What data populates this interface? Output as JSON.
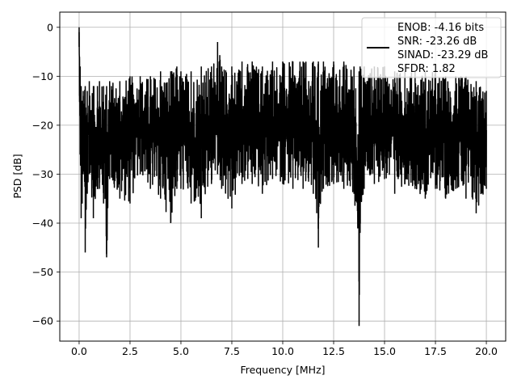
{
  "chart_data": {
    "type": "line",
    "title": "",
    "xlabel": "Frequency [MHz]",
    "ylabel": "PSD [dB]",
    "xlim": [
      -0.95,
      20.95
    ],
    "ylim": [
      -64.1,
      3.1
    ],
    "xticks": [
      0.0,
      2.5,
      5.0,
      7.5,
      10.0,
      12.5,
      15.0,
      17.5,
      20.0
    ],
    "xtick_labels": [
      "0.0",
      "2.5",
      "5.0",
      "7.5",
      "10.0",
      "12.5",
      "15.0",
      "17.5",
      "20.0"
    ],
    "yticks": [
      0,
      -10,
      -20,
      -30,
      -40,
      -50,
      -60
    ],
    "ytick_labels": [
      "0",
      "−10",
      "−20",
      "−30",
      "−40",
      "−50",
      "−60"
    ],
    "grid": true,
    "legend_position": "top-right",
    "legend_lines": [
      "ENOB: -4.16 bits",
      "SNR: -23.26 dB",
      "SINAD: -23.29 dB",
      "SFDR: 1.82"
    ],
    "line_color": "#000000",
    "series": [
      {
        "x": [
          0.0,
          0.02,
          0.05,
          0.1,
          0.15,
          0.2,
          0.3,
          0.4,
          0.5,
          0.7,
          0.9,
          1.0,
          1.2,
          1.35,
          1.5,
          2.0,
          2.5,
          3.0,
          3.5,
          4.0,
          4.5,
          4.8,
          5.0,
          5.5,
          6.0,
          6.5,
          6.8,
          7.0,
          7.5,
          8.0,
          8.5,
          9.0,
          9.5,
          10.0,
          10.5,
          11.0,
          11.5,
          11.75,
          12.0,
          12.5,
          13.0,
          13.5,
          13.75,
          13.8,
          14.0,
          14.5,
          15.0,
          15.5,
          16.0,
          16.5,
          17.0,
          17.5,
          18.0,
          18.5,
          19.0,
          19.5,
          20.0
        ],
        "upper": [
          0,
          -6,
          -8,
          -12,
          -15,
          -13,
          -12,
          -13,
          -11,
          -12,
          -12,
          -11,
          -12,
          -12,
          -11,
          -11,
          -10,
          -10,
          -10,
          -9,
          -9,
          -8,
          -9,
          -9,
          -8,
          -8,
          -3,
          -8,
          -8,
          -7,
          -7,
          -8,
          -7,
          -7,
          -7,
          -7,
          -7,
          -7,
          -7,
          -7,
          -7,
          -8,
          -9,
          -8,
          -8,
          -8,
          -8,
          -9,
          -9,
          -9,
          -9,
          -9,
          -10,
          -10,
          -10,
          -11,
          -13
        ],
        "lower": [
          -4,
          -14,
          -26,
          -39,
          -36,
          -30,
          -46,
          -34,
          -30,
          -39,
          -33,
          -33,
          -36,
          -47,
          -31,
          -35,
          -36,
          -30,
          -33,
          -35,
          -40,
          -33,
          -33,
          -36,
          -39,
          -32,
          -30,
          -33,
          -37,
          -32,
          -32,
          -34,
          -31,
          -32,
          -33,
          -33,
          -34,
          -45,
          -33,
          -32,
          -33,
          -34,
          -61,
          -42,
          -33,
          -32,
          -31,
          -34,
          -32,
          -33,
          -35,
          -33,
          -35,
          -33,
          -35,
          -38,
          -33
        ]
      }
    ]
  }
}
